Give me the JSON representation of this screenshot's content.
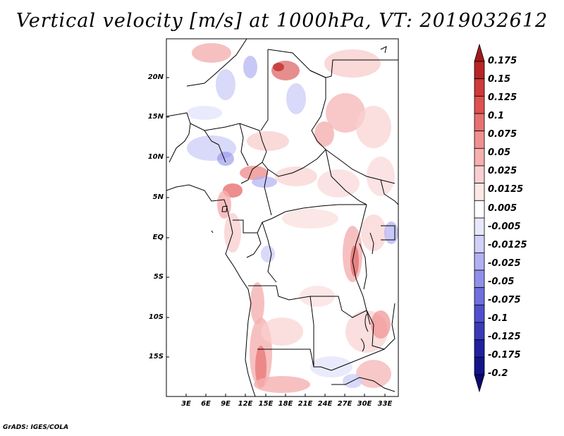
{
  "title": "Vertical velocity [m/s] at 1000hPa, VT: 2019032612",
  "credit": "GrADS: IGES/COLA",
  "map": {
    "lon_range": [
      0,
      35
    ],
    "lat_range": [
      -20,
      25
    ],
    "y_ticks": [
      "20N",
      "15N",
      "10N",
      "5N",
      "EQ",
      "5S",
      "10S",
      "15S"
    ],
    "x_ticks": [
      "3E",
      "6E",
      "9E",
      "12E",
      "15E",
      "18E",
      "21E",
      "24E",
      "27E",
      "30E",
      "33E"
    ]
  },
  "colorbar": {
    "levels": [
      "0.175",
      "0.15",
      "0.125",
      "0.1",
      "0.075",
      "0.05",
      "0.025",
      "0.0125",
      "0.005",
      "-0.005",
      "-0.0125",
      "-0.025",
      "-0.05",
      "-0.075",
      "-0.1",
      "-0.125",
      "-0.175",
      "-0.2"
    ],
    "colors": [
      "#a01b1b",
      "#b82525",
      "#cf3a3a",
      "#e05050",
      "#e87070",
      "#f09090",
      "#f5b0b0",
      "#f9d0d0",
      "#fde8e8",
      "#ffffff",
      "#e8e8fd",
      "#d0d0f9",
      "#b0b0f3",
      "#9090ea",
      "#6f6fdf",
      "#5050cf",
      "#3a3ab8",
      "#2020a0",
      "#14148a",
      "#0a0a70"
    ]
  }
}
